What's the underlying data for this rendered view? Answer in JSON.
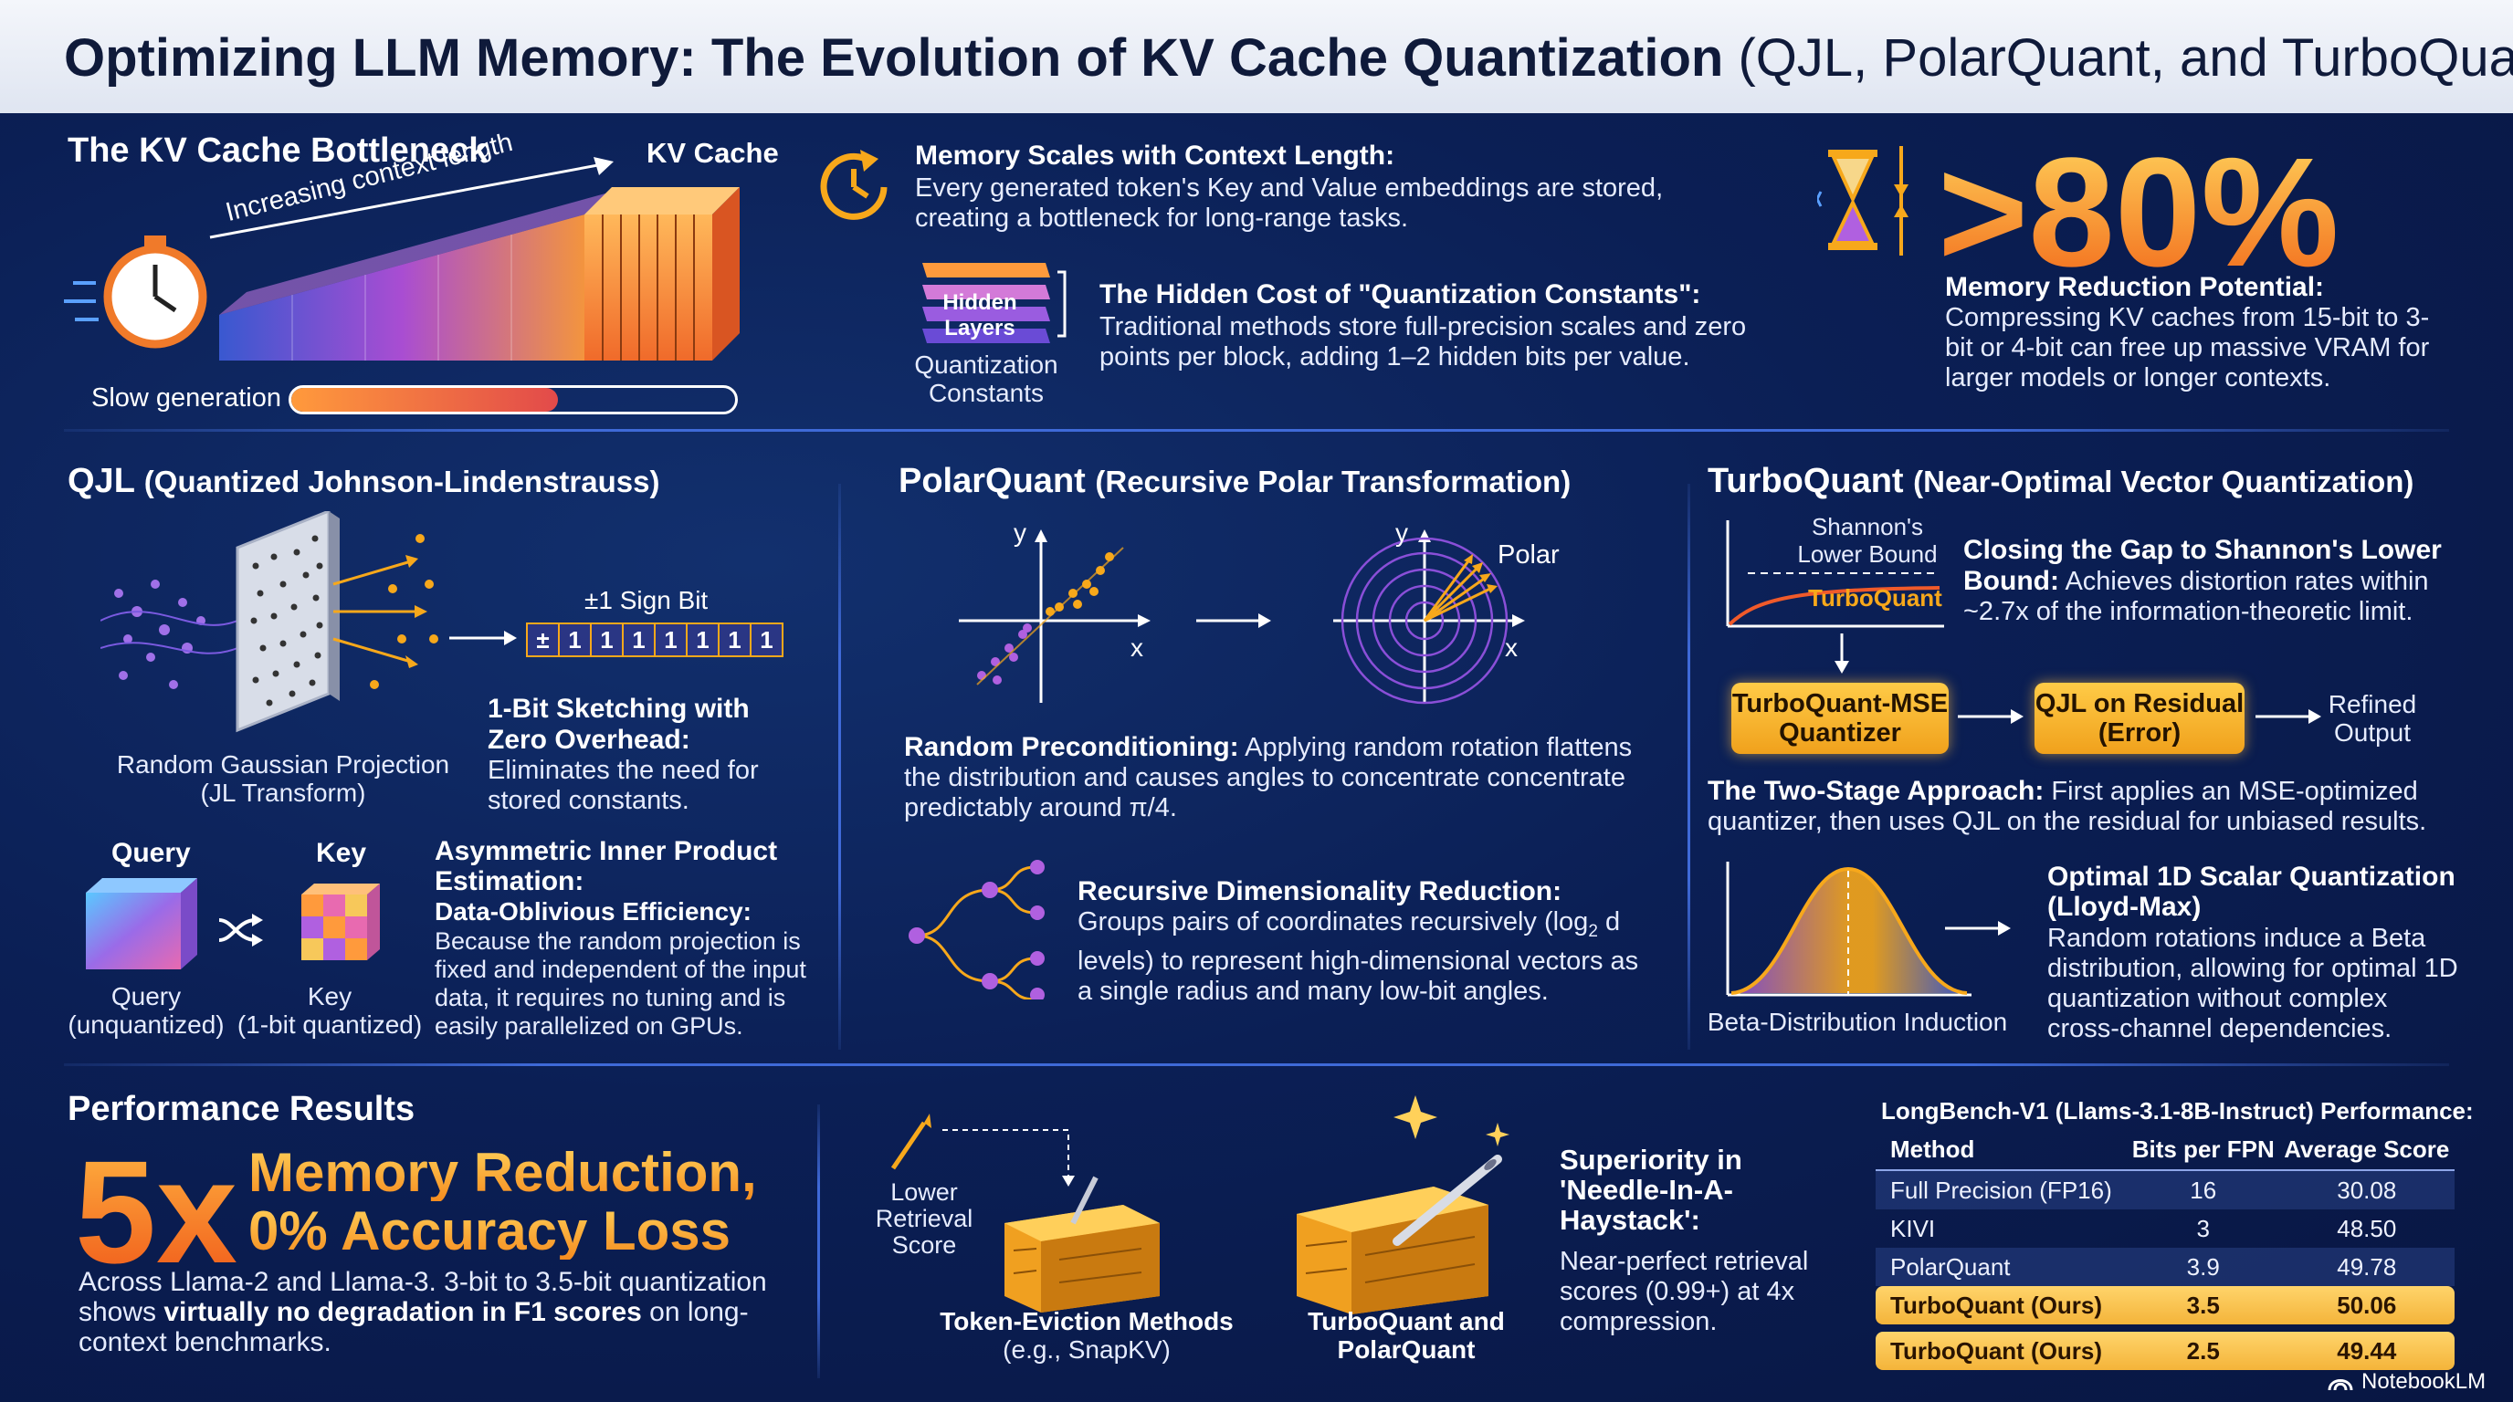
{
  "header": {
    "title_bold": "Optimizing LLM Memory: The Evolution of KV Cache Quantization",
    "title_sub": "(QJL, PolarQuant, and TurboQuant)"
  },
  "bottleneck": {
    "title": "The KV Cache Bottleneck",
    "kv_label": "KV Cache",
    "context_label": "Increasing context length",
    "slow_label": "Slow generation",
    "slow_progress": 0.6,
    "memory_scales_title": "Memory Scales with Context Length:",
    "memory_scales_text": "Every generated token's Key and Value embeddings are stored, creating a bottleneck for long-range tasks.",
    "hidden_stack_label_1": "Hidden",
    "hidden_stack_label_2": "Layers",
    "qc_caption": "Quantization Constants",
    "hidden_cost_title": "The Hidden Cost of \"Quantization Constants\":",
    "hidden_cost_text": "Traditional methods store full-precision scales and zero points per block, adding 1–2 hidden bits per value.",
    "big_pct": ">80%",
    "mem_reduction_title": "Memory Reduction Potential:",
    "mem_reduction_text": "Compressing KV caches from 15-bit to 3-bit or 4-bit can free up massive VRAM for larger models or longer contexts."
  },
  "qjl": {
    "title": "QJL",
    "title_sub": "(Quantized Johnson-Lindenstrauss)",
    "sign_bit_label": "±1 Sign Bit",
    "sign_bits": [
      "±",
      "1",
      "1",
      "1",
      "1",
      "1",
      "1",
      "1"
    ],
    "projection_caption_1": "Random Gaussian Projection",
    "projection_caption_2": "(JL Transform)",
    "sketch_title": "1-Bit Sketching with Zero Overhead:",
    "sketch_text": "Eliminates the need for stored constants.",
    "query_label": "Query",
    "key_label": "Key",
    "query_caption_1": "Query",
    "query_caption_2": "(unquantized)",
    "key_caption_1": "Key",
    "key_caption_2": "(1-bit quantized)",
    "asym_title": "Asymmetric Inner Product Estimation:",
    "oblivious_title": "Data-Oblivious Efficiency:",
    "oblivious_text": "Because the random projection is fixed and independent of the input data, it requires no tuning and is easily parallelized on GPUs."
  },
  "polar": {
    "title": "PolarQuant",
    "title_sub": "(Recursive Polar Transformation)",
    "axis_y": "y",
    "axis_x": "x",
    "polar_label": "Polar",
    "precond_title": "Random Preconditioning:",
    "precond_text": "Applying random rotation flattens the distribution and causes angles to concentrate concentrate predictably around π/4.",
    "recursive_title": "Recursive Dimensionality Reduction:",
    "recursive_text_a": "Groups pairs of coordinates recursively (log",
    "recursive_sub": "2",
    "recursive_text_b": " d levels) to represent high-dimensional vectors as a single radius and many low-bit angles."
  },
  "turbo": {
    "title": "TurboQuant",
    "title_sub": "(Near-Optimal Vector Quantization)",
    "shannon_label_1": "Shannon's",
    "shannon_label_2": "Lower Bound",
    "turbo_curve_label": "TurboQuant",
    "gap_title": "Closing the Gap to Shannon's Lower Bound:",
    "gap_text": "Achieves distortion rates within ~2.7x of the information-theoretic limit.",
    "mse_box_1": "TurboQuant-MSE",
    "mse_box_2": "Quantizer",
    "qjl_box_1": "QJL on Residual",
    "qjl_box_2": "(Error)",
    "refined_1": "Refined",
    "refined_2": "Output",
    "twostage_title": "The Two-Stage Approach:",
    "twostage_text": "First applies an MSE-optimized quantizer, then uses QJL on the residual for unbiased results.",
    "beta_caption": "Beta-Distribution Induction",
    "lloyd_title": "Optimal 1D Scalar Quantization (Lloyd-Max)",
    "lloyd_text": "Random rotations induce a Beta distribution, allowing for optimal 1D quantization without complex cross-channel dependencies."
  },
  "performance": {
    "title": "Performance Results",
    "big": "5x",
    "headline_1": "Memory Reduction,",
    "headline_2": "0% Accuracy Loss",
    "desc_a": "Across Llama-2 and Llama-3. 3-bit to 3.5-bit quantization shows ",
    "desc_bold": "virtually no degradation in F1 scores",
    "desc_b": " on long-context benchmarks.",
    "lower_score_1": "Lower",
    "lower_score_2": "Retrieval",
    "lower_score_3": "Score",
    "eviction_caption_1": "Token-Eviction Methods",
    "eviction_caption_2": "(e.g., SnapKV)",
    "turbo_caption_1": "TurboQuant and",
    "turbo_caption_2": "PolarQuant",
    "needle_title": "Superiority in 'Needle-In-A-Haystack':",
    "needle_text": "Near-perfect retrieval scores (0.99+) at 4x compression.",
    "table_title": "LongBench-V1 (Llams-3.1-8B-Instruct) Performance:",
    "table_headers": [
      "Method",
      "Bits per FPN",
      "Average Score"
    ],
    "table_rows": [
      {
        "method": "Full Precision (FP16)",
        "bits": "16",
        "score": "30.08"
      },
      {
        "method": "KIVI",
        "bits": "3",
        "score": "48.50"
      },
      {
        "method": "PolarQuant",
        "bits": "3.9",
        "score": "49.78"
      },
      {
        "method": "TurboQuant (Ours)",
        "bits": "3.5",
        "score": "50.06"
      },
      {
        "method": "TurboQuant (Ours)",
        "bits": "2.5",
        "score": "49.44"
      }
    ]
  },
  "brand": "NotebookLM",
  "colors": {
    "accent_orange": "#f7a81b",
    "accent_purple": "#8a4fd8",
    "divider_blue": "#3f6ad8"
  }
}
